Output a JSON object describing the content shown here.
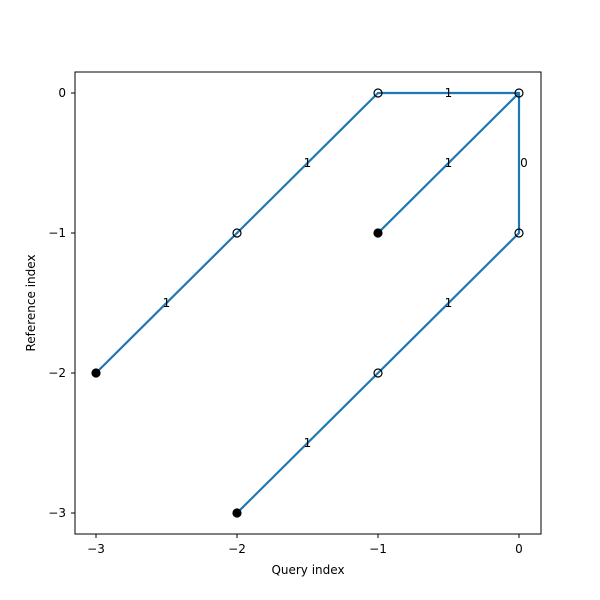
{
  "chart_data": {
    "type": "scatter",
    "xlabel": "Query index",
    "ylabel": "Reference index",
    "xlim": [
      -3.15,
      0.15
    ],
    "ylim": [
      -3.15,
      0.15
    ],
    "xticks": [
      -3,
      -2,
      -1,
      0
    ],
    "yticks": [
      0,
      -1,
      -2,
      -3
    ],
    "grid": false,
    "line_color": "#1f77b4",
    "marker_color": "#000000",
    "nodes": [
      {
        "x": 0,
        "y": 0,
        "filled": false
      },
      {
        "x": -1,
        "y": 0,
        "filled": false
      },
      {
        "x": 0,
        "y": -1,
        "filled": false
      },
      {
        "x": -2,
        "y": -1,
        "filled": false
      },
      {
        "x": -1,
        "y": -2,
        "filled": false
      },
      {
        "x": -1,
        "y": -1,
        "filled": true
      },
      {
        "x": -3,
        "y": -2,
        "filled": true
      },
      {
        "x": -2,
        "y": -3,
        "filled": true
      }
    ],
    "edges": [
      {
        "from": [
          0,
          0
        ],
        "to": [
          -1,
          0
        ],
        "label": "1"
      },
      {
        "from": [
          0,
          0
        ],
        "to": [
          -1,
          -1
        ],
        "label": "1"
      },
      {
        "from": [
          0,
          0
        ],
        "to": [
          0,
          -1
        ],
        "label": "0"
      },
      {
        "from": [
          -1,
          0
        ],
        "to": [
          -2,
          -1
        ],
        "label": "1"
      },
      {
        "from": [
          -2,
          -1
        ],
        "to": [
          -3,
          -2
        ],
        "label": "1"
      },
      {
        "from": [
          0,
          -1
        ],
        "to": [
          -1,
          -2
        ],
        "label": "1"
      },
      {
        "from": [
          -1,
          -2
        ],
        "to": [
          -2,
          -3
        ],
        "label": "1"
      }
    ]
  }
}
